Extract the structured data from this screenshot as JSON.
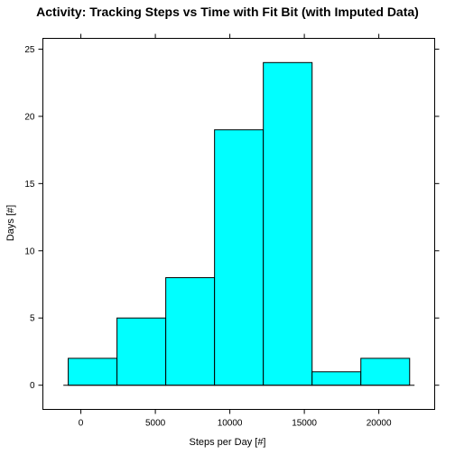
{
  "chart_data": {
    "type": "bar",
    "title": "Activity:  Tracking Steps vs Time with Fit Bit (with Imputed Data)",
    "xlabel": "Steps per Day [#]",
    "ylabel": "Days [#]",
    "bar_color": "#00ffff",
    "bins": [
      {
        "from": -849,
        "to": 2425,
        "count": 2
      },
      {
        "from": 2425,
        "to": 5699,
        "count": 5
      },
      {
        "from": 5699,
        "to": 8973,
        "count": 8
      },
      {
        "from": 8973,
        "to": 12247,
        "count": 19
      },
      {
        "from": 12247,
        "to": 15521,
        "count": 24
      },
      {
        "from": 15521,
        "to": 18795,
        "count": 1
      },
      {
        "from": 18795,
        "to": 22069,
        "count": 2
      }
    ],
    "xlim": [
      -2550,
      23750
    ],
    "ylim": [
      -1.8,
      25.8
    ],
    "xticks": [
      0,
      5000,
      10000,
      15000,
      20000
    ],
    "yticks": [
      0,
      5,
      10,
      15,
      20,
      25
    ],
    "grid": false,
    "legend": "none"
  }
}
